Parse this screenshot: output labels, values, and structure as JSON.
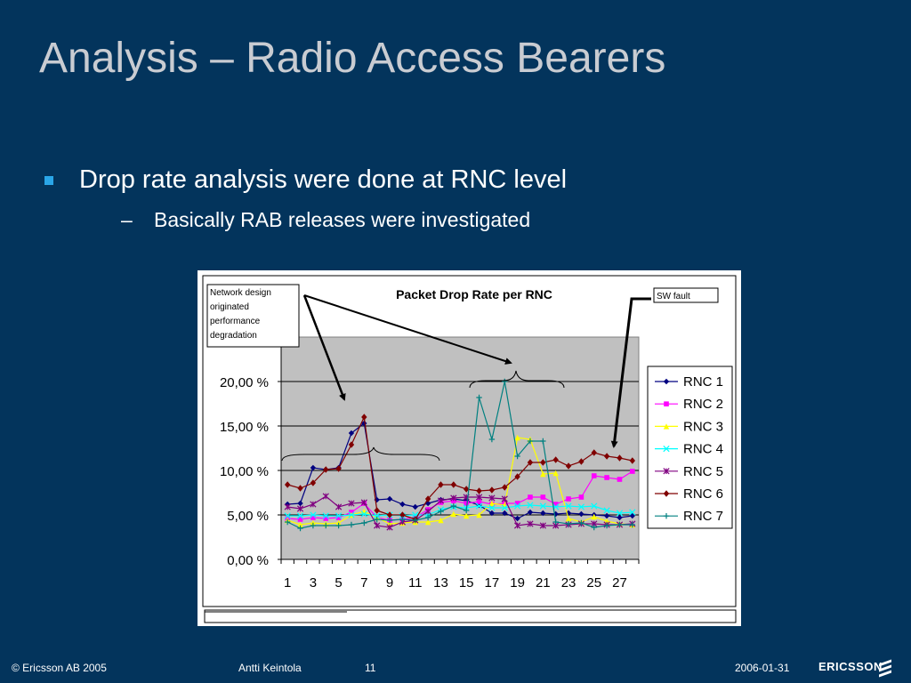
{
  "slide": {
    "title": "Analysis – Radio Access Bearers",
    "bullet_1": "Drop rate analysis were done at RNC level",
    "bullet_2_dash": "–",
    "bullet_2": "Basically RAB releases were investigated"
  },
  "footer": {
    "copyright": "© Ericsson AB 2005",
    "author": "Antti Keintola",
    "page": "11",
    "date": "2006-01-31",
    "logo": "ERICSSON"
  },
  "annotations": {
    "network_design": [
      "Network design",
      "originated",
      "performance",
      "degradation"
    ],
    "sw_fault": "SW fault"
  },
  "colors": {
    "background": "#03345c",
    "plot_area": "#c0c0c0",
    "bullet": "#2aa6e8"
  },
  "chart_data": {
    "type": "line",
    "title": "Packet Drop Rate per RNC",
    "xlabel": "",
    "ylabel": "",
    "ylim": [
      0,
      25
    ],
    "yticks": [
      "0,00 %",
      "5,00 %",
      "10,00 %",
      "15,00 %",
      "20,00 %"
    ],
    "x": [
      1,
      2,
      3,
      4,
      5,
      6,
      7,
      8,
      9,
      10,
      11,
      12,
      13,
      14,
      15,
      16,
      17,
      18,
      19,
      20,
      21,
      22,
      23,
      24,
      25,
      26,
      27,
      28
    ],
    "xtick_labels": [
      "1",
      "3",
      "5",
      "7",
      "9",
      "11",
      "13",
      "15",
      "17",
      "19",
      "21",
      "23",
      "25",
      "27"
    ],
    "grid": "horizontal",
    "legend_position": "right",
    "series": [
      {
        "name": "RNC 1",
        "color": "#000080",
        "marker": "diamond",
        "values": [
          6.2,
          6.3,
          10.3,
          10.1,
          10.3,
          14.2,
          15.3,
          6.7,
          6.8,
          6.2,
          5.9,
          6.3,
          6.7,
          6.8,
          6.6,
          6.1,
          5.2,
          5.2,
          4.6,
          5.3,
          5.2,
          5.1,
          5.2,
          5.1,
          5.0,
          4.9,
          4.7,
          4.9
        ]
      },
      {
        "name": "RNC 2",
        "color": "#ff00ff",
        "marker": "square",
        "values": [
          4.6,
          4.5,
          4.7,
          4.6,
          4.7,
          5.3,
          6.3,
          4.7,
          4.4,
          4.5,
          4.7,
          5.6,
          6.4,
          6.6,
          6.3,
          6.5,
          6.2,
          6.3,
          6.3,
          7.0,
          7.0,
          6.2,
          6.8,
          7.0,
          9.4,
          9.2,
          9.0,
          9.9
        ]
      },
      {
        "name": "RNC 3",
        "color": "#ffff00",
        "marker": "triangle",
        "values": [
          4.4,
          3.9,
          4.1,
          4.0,
          4.1,
          5.0,
          5.4,
          4.7,
          4.0,
          4.1,
          4.2,
          4.2,
          4.4,
          5.1,
          4.9,
          5.0,
          6.3,
          6.1,
          13.7,
          13.5,
          9.6,
          9.7,
          4.6,
          4.2,
          4.8,
          4.3,
          4.0,
          3.9
        ]
      },
      {
        "name": "RNC 4",
        "color": "#00ffff",
        "marker": "x",
        "values": [
          4.9,
          4.9,
          5.0,
          4.9,
          4.9,
          5.0,
          5.1,
          4.9,
          5.0,
          4.9,
          5.0,
          5.0,
          5.6,
          5.9,
          5.8,
          6.0,
          5.8,
          5.8,
          6.0,
          6.1,
          6.0,
          5.9,
          6.0,
          5.9,
          6.0,
          5.5,
          5.2,
          5.3
        ]
      },
      {
        "name": "RNC 5",
        "color": "#800080",
        "marker": "star",
        "values": [
          5.9,
          5.7,
          6.2,
          7.1,
          5.9,
          6.3,
          6.4,
          3.8,
          3.6,
          4.2,
          4.4,
          5.4,
          6.6,
          6.9,
          7.0,
          7.0,
          6.9,
          6.8,
          3.8,
          4.0,
          3.8,
          3.8,
          3.9,
          4.0,
          4.0,
          3.9,
          3.9,
          4.0
        ]
      },
      {
        "name": "RNC 6",
        "color": "#800000",
        "marker": "circle",
        "values": [
          8.4,
          8.0,
          8.6,
          10.1,
          10.2,
          12.9,
          16.0,
          5.5,
          5.0,
          5.0,
          4.5,
          6.8,
          8.4,
          8.4,
          7.9,
          7.7,
          7.8,
          8.1,
          9.3,
          10.9,
          10.9,
          11.2,
          10.5,
          11.0,
          12.0,
          11.6,
          11.4,
          11.1
        ]
      },
      {
        "name": "RNC 7",
        "color": "#008080",
        "marker": "plus",
        "values": [
          4.2,
          3.5,
          3.8,
          3.8,
          3.8,
          3.9,
          4.1,
          4.5,
          4.4,
          4.5,
          4.4,
          4.7,
          5.4,
          6.0,
          5.5,
          18.2,
          13.5,
          20.0,
          11.6,
          13.3,
          13.3,
          4.2,
          4.0,
          4.1,
          3.6,
          3.8,
          3.9,
          3.9
        ]
      }
    ]
  }
}
